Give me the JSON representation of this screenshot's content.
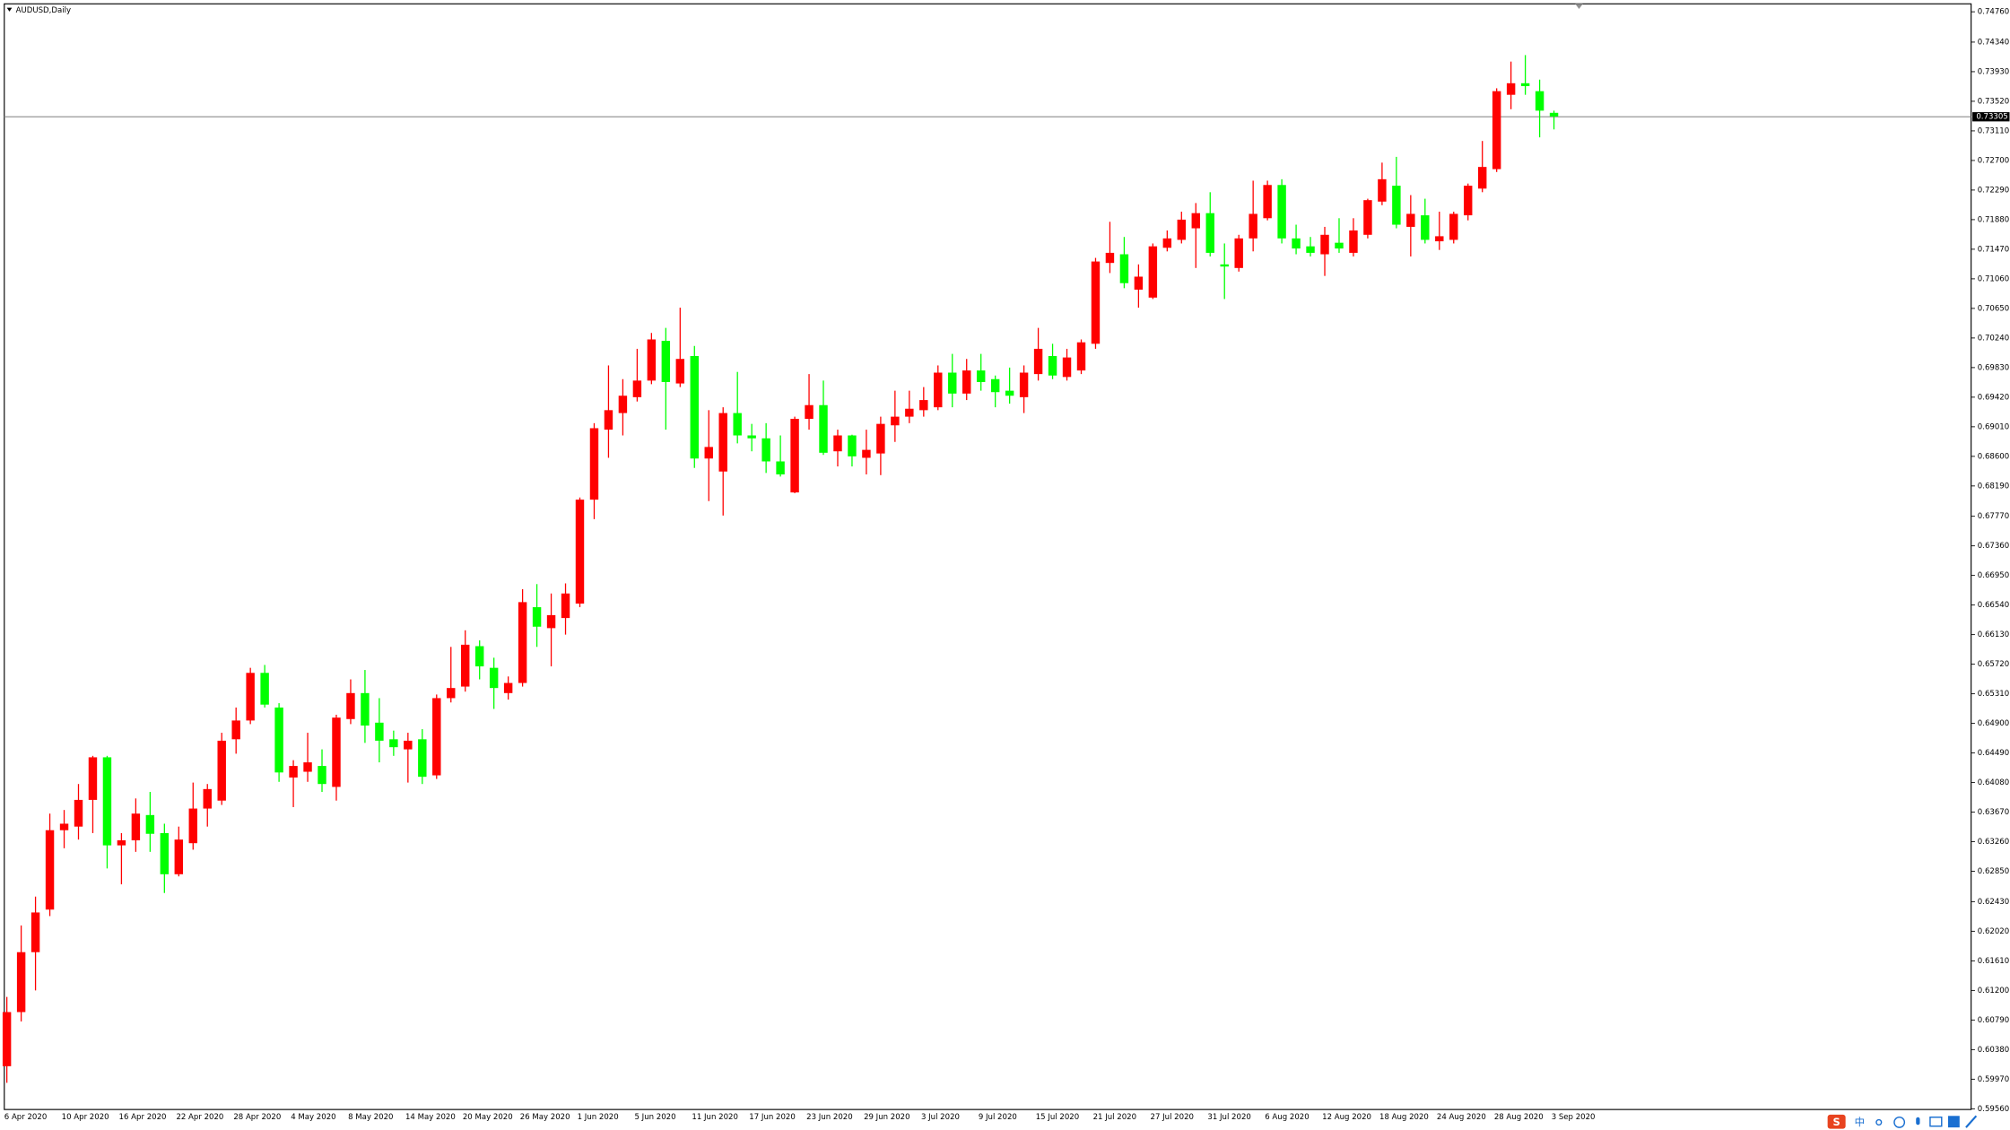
{
  "chart_data": {
    "type": "candlestick",
    "title": "AUDUSD,Daily",
    "up_color": "#ff0000",
    "down_color": "#00ff00",
    "price_line_color": "#8c8c8c",
    "categories": [
      "6 Apr 2020",
      null,
      null,
      null,
      "10 Apr 2020",
      null,
      null,
      null,
      "16 Apr 2020",
      null,
      null,
      null,
      "22 Apr 2020",
      null,
      null,
      null,
      "28 Apr 2020",
      null,
      null,
      null,
      "4 May 2020",
      null,
      null,
      null,
      "8 May 2020",
      null,
      null,
      null,
      "14 May 2020",
      null,
      null,
      null,
      "20 May 2020",
      null,
      null,
      null,
      "26 May 2020",
      null,
      null,
      null,
      "1 Jun 2020",
      null,
      null,
      null,
      "5 Jun 2020",
      null,
      null,
      null,
      "11 Jun 2020",
      null,
      null,
      null,
      "17 Jun 2020",
      null,
      null,
      null,
      "23 Jun 2020",
      null,
      null,
      null,
      "29 Jun 2020",
      null,
      null,
      null,
      "3 Jul 2020",
      null,
      null,
      null,
      "9 Jul 2020",
      null,
      null,
      null,
      "15 Jul 2020",
      null,
      null,
      null,
      "21 Jul 2020",
      null,
      null,
      null,
      "27 Jul 2020",
      null,
      null,
      null,
      "31 Jul 2020",
      null,
      null,
      null,
      "6 Aug 2020",
      null,
      null,
      null,
      "12 Aug 2020",
      null,
      null,
      null,
      "18 Aug 2020",
      null,
      null,
      null,
      "24 Aug 2020",
      null,
      null,
      null,
      "28 Aug 2020",
      null,
      null,
      null,
      "3 Sep 2020"
    ],
    "open": [
      0.6015,
      0.609,
      0.6173,
      0.6232,
      0.6342,
      0.6347,
      0.6384,
      0.6443,
      0.6321,
      0.6328,
      0.6363,
      0.6338,
      0.6281,
      0.6324,
      0.6372,
      0.6383,
      0.6468,
      0.6494,
      0.656,
      0.6512,
      0.6415,
      0.6423,
      0.6431,
      0.6402,
      0.6496,
      0.6532,
      0.6491,
      0.6468,
      0.6454,
      0.6468,
      0.6418,
      0.6525,
      0.6541,
      0.6597,
      0.6567,
      0.6532,
      0.6546,
      0.6651,
      0.6622,
      0.6636,
      0.6656,
      0.68,
      0.6897,
      0.692,
      0.6942,
      0.6965,
      0.702,
      0.6961,
      0.6999,
      0.6857,
      0.6839,
      0.692,
      0.6889,
      0.6885,
      0.6853,
      0.681,
      0.6912,
      0.6931,
      0.6867,
      0.6889,
      0.6858,
      0.6864,
      0.6903,
      0.6915,
      0.6924,
      0.6928,
      0.6976,
      0.6947,
      0.6979,
      0.6967,
      0.6951,
      0.6942,
      0.6974,
      0.6999,
      0.697,
      0.6979,
      0.7016,
      0.7128,
      0.714,
      0.7091,
      0.708,
      0.7149,
      0.716,
      0.7176,
      0.7197,
      0.7126,
      0.7121,
      0.7162,
      0.719,
      0.7236,
      0.7162,
      0.7151,
      0.714,
      0.7156,
      0.7142,
      0.7167,
      0.7213,
      0.7235,
      0.7178,
      0.7194,
      0.7158,
      0.716,
      0.7194,
      0.7231,
      0.7258,
      0.7361,
      0.7377,
      0.7366,
      0.7336
    ],
    "high": [
      0.6111,
      0.621,
      0.625,
      0.6365,
      0.637,
      0.6406,
      0.6445,
      0.6445,
      0.6338,
      0.6386,
      0.6395,
      0.6351,
      0.6347,
      0.6408,
      0.6406,
      0.6477,
      0.6512,
      0.6567,
      0.6571,
      0.6518,
      0.6439,
      0.6477,
      0.6454,
      0.6502,
      0.6551,
      0.6564,
      0.6525,
      0.648,
      0.6477,
      0.6482,
      0.653,
      0.6596,
      0.6619,
      0.6605,
      0.6581,
      0.6555,
      0.6676,
      0.6683,
      0.667,
      0.6684,
      0.6803,
      0.6906,
      0.6986,
      0.6967,
      0.7009,
      0.7031,
      0.7038,
      0.7066,
      0.7013,
      0.6924,
      0.6928,
      0.6977,
      0.6905,
      0.6906,
      0.6889,
      0.6915,
      0.6974,
      0.6965,
      0.6897,
      0.689,
      0.6897,
      0.6915,
      0.6951,
      0.6951,
      0.6956,
      0.6986,
      0.7002,
      0.6995,
      0.7002,
      0.6972,
      0.6983,
      0.6986,
      0.7038,
      0.7016,
      0.7009,
      0.7022,
      0.7135,
      0.7185,
      0.7164,
      0.7126,
      0.7155,
      0.7173,
      0.7199,
      0.7211,
      0.7226,
      0.7155,
      0.7167,
      0.7242,
      0.7242,
      0.7244,
      0.7181,
      0.7164,
      0.7178,
      0.719,
      0.719,
      0.7217,
      0.7267,
      0.7275,
      0.7222,
      0.7217,
      0.7199,
      0.7199,
      0.7238,
      0.7297,
      0.737,
      0.7407,
      0.7416,
      0.7382,
      0.7339
    ],
    "low": [
      0.5992,
      0.6077,
      0.612,
      0.6223,
      0.6317,
      0.6329,
      0.6338,
      0.6289,
      0.6267,
      0.6312,
      0.6312,
      0.6255,
      0.6278,
      0.6315,
      0.6347,
      0.6377,
      0.6448,
      0.6489,
      0.6512,
      0.6409,
      0.6374,
      0.6409,
      0.6395,
      0.6383,
      0.6489,
      0.6463,
      0.6436,
      0.6445,
      0.6408,
      0.6406,
      0.6413,
      0.6519,
      0.6534,
      0.6551,
      0.651,
      0.6523,
      0.6541,
      0.6596,
      0.6569,
      0.6613,
      0.6651,
      0.6773,
      0.6858,
      0.6889,
      0.6936,
      0.696,
      0.6897,
      0.6956,
      0.6844,
      0.6798,
      0.6778,
      0.6878,
      0.6867,
      0.6837,
      0.6832,
      0.6809,
      0.6897,
      0.6862,
      0.6846,
      0.6846,
      0.6835,
      0.6834,
      0.688,
      0.6906,
      0.6915,
      0.6924,
      0.6928,
      0.6938,
      0.6951,
      0.6928,
      0.6933,
      0.692,
      0.6965,
      0.6967,
      0.6965,
      0.6974,
      0.7009,
      0.7114,
      0.7093,
      0.7066,
      0.7078,
      0.7144,
      0.7155,
      0.7121,
      0.7137,
      0.7078,
      0.7116,
      0.7144,
      0.7187,
      0.7155,
      0.714,
      0.7137,
      0.711,
      0.7142,
      0.7137,
      0.7162,
      0.7208,
      0.7176,
      0.7137,
      0.7155,
      0.7146,
      0.7155,
      0.7187,
      0.7226,
      0.7254,
      0.7341,
      0.7361,
      0.7302,
      0.7313
    ],
    "close": [
      0.609,
      0.6173,
      0.6228,
      0.6342,
      0.6351,
      0.6384,
      0.6443,
      0.6321,
      0.6328,
      0.6365,
      0.6337,
      0.6281,
      0.6329,
      0.6372,
      0.6399,
      0.6466,
      0.6494,
      0.656,
      0.6516,
      0.6422,
      0.6431,
      0.6436,
      0.6406,
      0.6498,
      0.6532,
      0.6487,
      0.6466,
      0.6457,
      0.6466,
      0.6416,
      0.6525,
      0.6539,
      0.6599,
      0.6569,
      0.6539,
      0.6546,
      0.6658,
      0.6624,
      0.664,
      0.667,
      0.68,
      0.6899,
      0.6924,
      0.6944,
      0.6965,
      0.7022,
      0.6963,
      0.6995,
      0.6857,
      0.6873,
      0.692,
      0.6889,
      0.6885,
      0.6853,
      0.6835,
      0.6912,
      0.6931,
      0.6865,
      0.6889,
      0.686,
      0.6869,
      0.6905,
      0.6915,
      0.6926,
      0.6938,
      0.6976,
      0.6947,
      0.6979,
      0.6963,
      0.6949,
      0.6944,
      0.6976,
      0.7009,
      0.6972,
      0.6997,
      0.7018,
      0.713,
      0.7142,
      0.71,
      0.7109,
      0.7151,
      0.7162,
      0.7188,
      0.7197,
      0.7142,
      0.7123,
      0.7162,
      0.7196,
      0.7236,
      0.7162,
      0.7148,
      0.7142,
      0.7167,
      0.7148,
      0.7173,
      0.7215,
      0.7244,
      0.7181,
      0.7196,
      0.716,
      0.7165,
      0.7196,
      0.7235,
      0.7261,
      0.7366,
      0.7377,
      0.7373,
      0.7339,
      0.7331
    ],
    "current_price": 0.73305,
    "ylim": [
      0.5955,
      0.7487
    ],
    "yticks": [
      {
        "value": 0.7476,
        "label": "0.74760"
      },
      {
        "value": 0.7434,
        "label": "0.74340"
      },
      {
        "value": 0.7393,
        "label": "0.73930"
      },
      {
        "value": 0.7352,
        "label": "0.73520"
      },
      {
        "value": 0.7311,
        "label": "0.73110"
      },
      {
        "value": 0.727,
        "label": "0.72700"
      },
      {
        "value": 0.7229,
        "label": "0.72290"
      },
      {
        "value": 0.7188,
        "label": "0.71880"
      },
      {
        "value": 0.7147,
        "label": "0.71470"
      },
      {
        "value": 0.7106,
        "label": "0.71060"
      },
      {
        "value": 0.7065,
        "label": "0.70650"
      },
      {
        "value": 0.7024,
        "label": "0.70240"
      },
      {
        "value": 0.6983,
        "label": "0.69830"
      },
      {
        "value": 0.6942,
        "label": "0.69420"
      },
      {
        "value": 0.6901,
        "label": "0.69010"
      },
      {
        "value": 0.686,
        "label": "0.68600"
      },
      {
        "value": 0.6819,
        "label": "0.68190"
      },
      {
        "value": 0.6777,
        "label": "0.67770"
      },
      {
        "value": 0.6736,
        "label": "0.67360"
      },
      {
        "value": 0.6695,
        "label": "0.66950"
      },
      {
        "value": 0.6654,
        "label": "0.66540"
      },
      {
        "value": 0.6613,
        "label": "0.66130"
      },
      {
        "value": 0.6572,
        "label": "0.65720"
      },
      {
        "value": 0.6531,
        "label": "0.65310"
      },
      {
        "value": 0.649,
        "label": "0.64900"
      },
      {
        "value": 0.6449,
        "label": "0.64490"
      },
      {
        "value": 0.6408,
        "label": "0.64080"
      },
      {
        "value": 0.6367,
        "label": "0.63670"
      },
      {
        "value": 0.6326,
        "label": "0.63260"
      },
      {
        "value": 0.6285,
        "label": "0.62850"
      },
      {
        "value": 0.6243,
        "label": "0.62430"
      },
      {
        "value": 0.6202,
        "label": "0.62020"
      },
      {
        "value": 0.6161,
        "label": "0.61610"
      },
      {
        "value": 0.612,
        "label": "0.61200"
      },
      {
        "value": 0.6079,
        "label": "0.60790"
      },
      {
        "value": 0.6038,
        "label": "0.60380"
      },
      {
        "value": 0.5997,
        "label": "0.59970"
      },
      {
        "value": 0.5956,
        "label": "0.59560"
      }
    ],
    "grid": false
  },
  "ime_toolbar": {
    "label": "中"
  }
}
